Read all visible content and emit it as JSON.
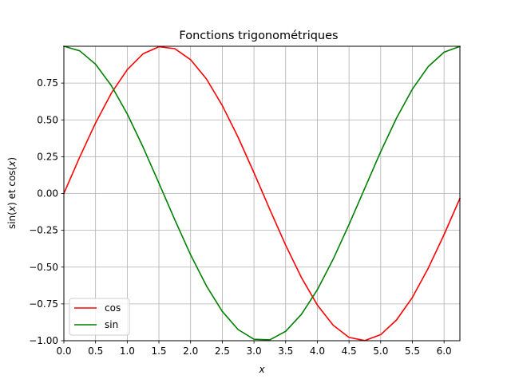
{
  "chart_data": {
    "type": "line",
    "title": "Fonctions trigonométriques",
    "xlabel": "x",
    "ylabel_parts": [
      "sin(",
      "x",
      ") et cos(",
      "x",
      ")"
    ],
    "xlim": [
      0,
      6.25
    ],
    "ylim": [
      -1.0,
      1.0
    ],
    "xticks": [
      0.0,
      0.5,
      1.0,
      1.5,
      2.0,
      2.5,
      3.0,
      3.5,
      4.0,
      4.5,
      5.0,
      5.5,
      6.0
    ],
    "xtick_labels": [
      "0.0",
      "0.5",
      "1.0",
      "1.5",
      "2.0",
      "2.5",
      "3.0",
      "3.5",
      "4.0",
      "4.5",
      "5.0",
      "5.5",
      "6.0"
    ],
    "yticks": [
      -1.0,
      -0.75,
      -0.5,
      -0.25,
      0.0,
      0.25,
      0.5,
      0.75
    ],
    "ytick_labels": [
      "−1.00",
      "−0.75",
      "−0.50",
      "−0.25",
      "0.00",
      "0.25",
      "0.50",
      "0.75"
    ],
    "grid": true,
    "grid_color": "#b0b0b0",
    "legend_position": "lower left",
    "x": [
      0.0,
      0.25,
      0.5,
      0.75,
      1.0,
      1.25,
      1.5,
      1.75,
      2.0,
      2.25,
      2.5,
      2.75,
      3.0,
      3.25,
      3.5,
      3.75,
      4.0,
      4.25,
      4.5,
      4.75,
      5.0,
      5.25,
      5.5,
      5.75,
      6.0,
      6.25
    ],
    "series": [
      {
        "name": "cos",
        "color": "#ff0000",
        "values": [
          0.0,
          0.247,
          0.479,
          0.682,
          0.841,
          0.949,
          0.997,
          0.984,
          0.909,
          0.778,
          0.598,
          0.382,
          0.141,
          -0.108,
          -0.351,
          -0.572,
          -0.757,
          -0.895,
          -0.978,
          -0.999,
          -0.959,
          -0.859,
          -0.706,
          -0.508,
          -0.279,
          -0.033
        ]
      },
      {
        "name": "sin",
        "color": "#008000",
        "values": [
          1.0,
          0.969,
          0.878,
          0.732,
          0.54,
          0.315,
          0.071,
          -0.178,
          -0.416,
          -0.628,
          -0.801,
          -0.924,
          -0.99,
          -0.994,
          -0.936,
          -0.82,
          -0.654,
          -0.446,
          -0.211,
          0.037,
          0.284,
          0.512,
          0.709,
          0.862,
          0.96,
          0.999
        ]
      }
    ]
  }
}
